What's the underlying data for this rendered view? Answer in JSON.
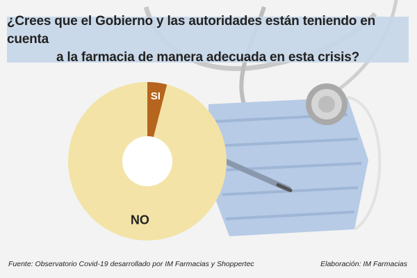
{
  "title": {
    "line1": "¿Crees que el Gobierno y las autoridades están teniendo en cuenta",
    "line2": "a la farmacia de manera adecuada en esta crisis?"
  },
  "chart_data": {
    "type": "pie",
    "variant": "donut",
    "categories": [
      "SI",
      "NO"
    ],
    "values": [
      4,
      96
    ],
    "colors": [
      "#b5651d",
      "#f3e3a6"
    ],
    "label_color_si": "#ffffff",
    "label_color_no": "#222222"
  },
  "footer": {
    "source": "Fuente: Observatorio Covid-19 desarrollado por IM Farmacias y Shoppertec",
    "credit": "Elaboración: IM Farmacias"
  },
  "colors": {
    "title_bg": "#c7d7e8",
    "mask": "#b7cbe6",
    "background": "#f2f2f2"
  }
}
